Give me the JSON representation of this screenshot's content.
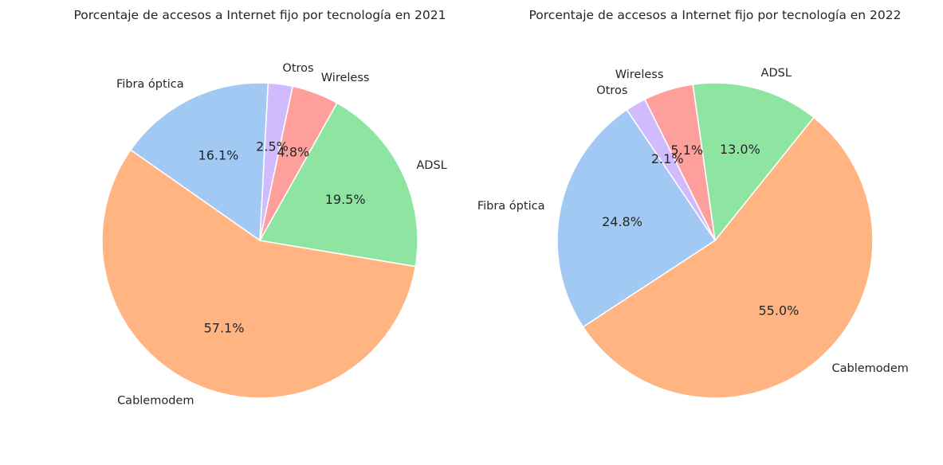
{
  "chart_data": [
    {
      "type": "pie",
      "title": "Porcentaje de accesos a Internet fijo por tecnología en 2021",
      "slices": [
        {
          "label": "Fibra óptica",
          "value": 16.1,
          "pct_label": "16.1%",
          "color": "#a1c9f4"
        },
        {
          "label": "Cablemodem",
          "value": 57.1,
          "pct_label": "57.1%",
          "color": "#ffb482"
        },
        {
          "label": "ADSL",
          "value": 19.5,
          "pct_label": "19.5%",
          "color": "#8de5a1"
        },
        {
          "label": "Wireless",
          "value": 4.8,
          "pct_label": "4.8%",
          "color": "#ff9f9b"
        },
        {
          "label": "Otros",
          "value": 2.5,
          "pct_label": "2.5%",
          "color": "#d0bbff"
        }
      ]
    },
    {
      "type": "pie",
      "title": "Porcentaje de accesos a Internet fijo por tecnología en 2022",
      "slices": [
        {
          "label": "Fibra óptica",
          "value": 24.8,
          "pct_label": "24.8%",
          "color": "#a1c9f4"
        },
        {
          "label": "Cablemodem",
          "value": 55.0,
          "pct_label": "55.0%",
          "color": "#ffb482"
        },
        {
          "label": "ADSL",
          "value": 13.0,
          "pct_label": "13.0%",
          "color": "#8de5a1"
        },
        {
          "label": "Wireless",
          "value": 5.1,
          "pct_label": "5.1%",
          "color": "#ff9f9b"
        },
        {
          "label": "Otros",
          "value": 2.1,
          "pct_label": "2.1%",
          "color": "#d0bbff"
        }
      ]
    }
  ]
}
